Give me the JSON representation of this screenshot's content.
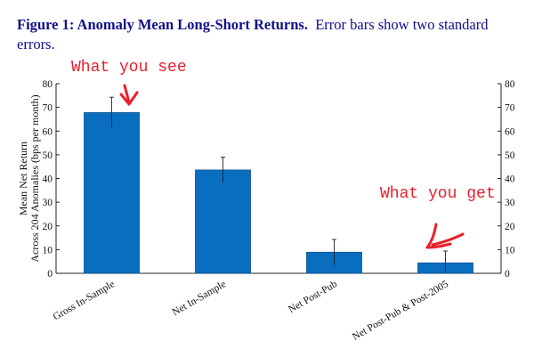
{
  "caption": {
    "bold": "Figure 1: Anomaly Mean Long-Short Returns.",
    "rest": "Error bars show two standard errors."
  },
  "chart_data": {
    "type": "bar",
    "categories": [
      "Gross In-Sample",
      "Net In-Sample",
      "Net Post-Pub",
      "Net Post-Pub & Post-2005"
    ],
    "values": [
      67.8,
      43.6,
      8.9,
      4.4
    ],
    "error_low": [
      61.5,
      38.2,
      3.5,
      0
    ],
    "error_high": [
      74.3,
      49.0,
      14.3,
      9.4
    ],
    "ylabel_lines": [
      "Mean Net Return",
      "Across 204 Anomalies (bps per month)"
    ],
    "ylim": [
      0,
      80
    ],
    "yticks": [
      0,
      10,
      20,
      30,
      40,
      50,
      60,
      70,
      80
    ],
    "bar_color": "#0a6ec0",
    "grid": false
  },
  "annotations": [
    {
      "text": "What you see",
      "target_index": 0
    },
    {
      "text": "What you get",
      "target_index": 3
    }
  ],
  "colors": {
    "caption": "#10108a",
    "annotation": "#e8202a"
  }
}
